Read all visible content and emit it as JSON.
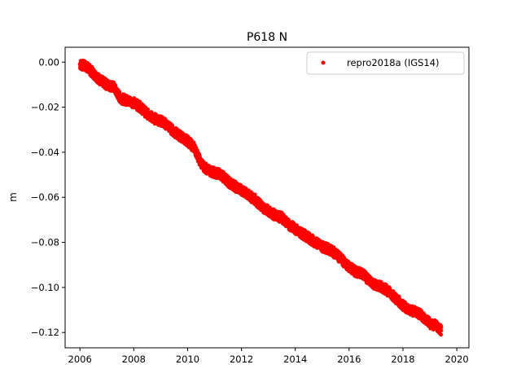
{
  "chart_data": {
    "type": "scatter",
    "title": "P618 N",
    "xlabel": "",
    "ylabel": "m",
    "xlim": [
      2005.45,
      2020.45
    ],
    "ylim": [
      -0.1268,
      0.0066
    ],
    "x_ticks": [
      2006,
      2008,
      2010,
      2012,
      2014,
      2016,
      2018,
      2020
    ],
    "x_tick_labels": [
      "2006",
      "2008",
      "2010",
      "2012",
      "2014",
      "2016",
      "2018",
      "2020"
    ],
    "y_ticks": [
      0.0,
      -0.02,
      -0.04,
      -0.06,
      -0.08,
      -0.1,
      -0.12
    ],
    "y_tick_labels": [
      "0.00",
      "−0.02",
      "−0.04",
      "−0.06",
      "−0.08",
      "−0.10",
      "−0.12"
    ],
    "grid": false,
    "legend": {
      "position": "top-right"
    },
    "series": [
      {
        "name": "repro2018a (IGS14)",
        "color": "#ff0000",
        "marker": "dot",
        "x": [
          2006.0,
          2006.25,
          2006.5,
          2006.75,
          2007.0,
          2007.25,
          2007.5,
          2007.75,
          2008.0,
          2008.25,
          2008.5,
          2008.75,
          2009.0,
          2009.25,
          2009.5,
          2009.75,
          2010.0,
          2010.25,
          2010.5,
          2010.75,
          2011.0,
          2011.25,
          2011.5,
          2011.75,
          2012.0,
          2012.25,
          2012.5,
          2012.75,
          2013.0,
          2013.25,
          2013.5,
          2013.75,
          2014.0,
          2014.25,
          2014.5,
          2014.75,
          2015.0,
          2015.25,
          2015.5,
          2015.75,
          2016.0,
          2016.25,
          2016.5,
          2016.75,
          2017.0,
          2017.25,
          2017.5,
          2017.75,
          2018.0,
          2018.25,
          2018.5,
          2018.75,
          2019.0,
          2019.25,
          2019.42
        ],
        "y": [
          -0.001,
          -0.002,
          -0.005,
          -0.008,
          -0.01,
          -0.011,
          -0.016,
          -0.017,
          -0.018,
          -0.02,
          -0.023,
          -0.025,
          -0.026,
          -0.028,
          -0.031,
          -0.033,
          -0.035,
          -0.038,
          -0.045,
          -0.048,
          -0.049,
          -0.05,
          -0.053,
          -0.055,
          -0.057,
          -0.059,
          -0.061,
          -0.064,
          -0.066,
          -0.068,
          -0.069,
          -0.072,
          -0.074,
          -0.076,
          -0.078,
          -0.08,
          -0.082,
          -0.083,
          -0.085,
          -0.088,
          -0.091,
          -0.093,
          -0.094,
          -0.097,
          -0.099,
          -0.1,
          -0.102,
          -0.105,
          -0.108,
          -0.11,
          -0.111,
          -0.113,
          -0.116,
          -0.117,
          -0.119
        ]
      }
    ]
  }
}
